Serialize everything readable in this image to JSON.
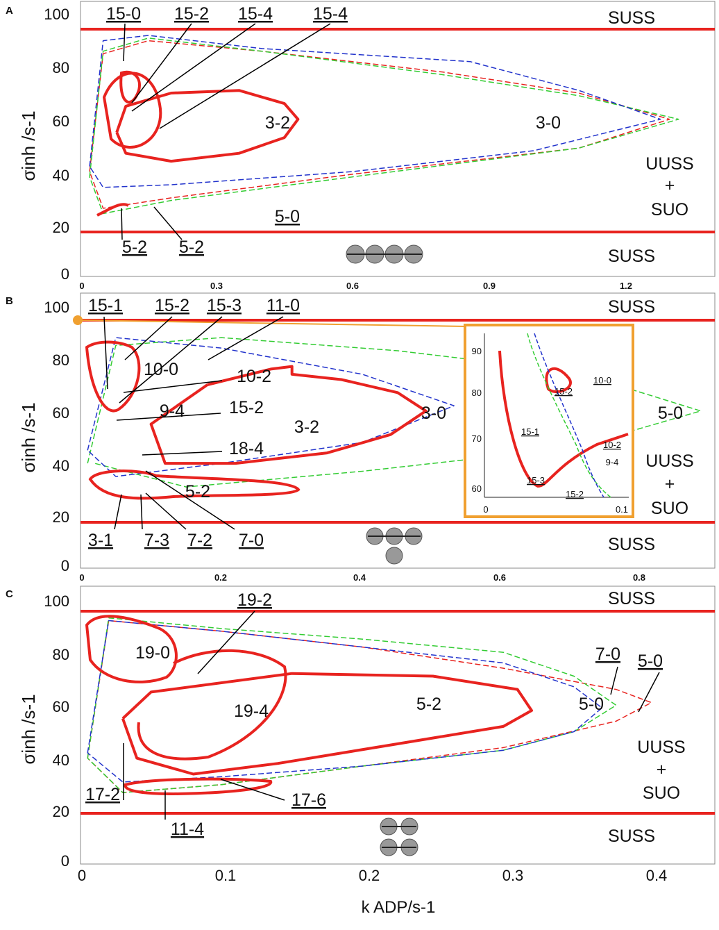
{
  "y_axis_label": "σinh /s-1",
  "x_axis_label": "k ADP/s-1",
  "colors": {
    "bound": "#e8231f",
    "curve_red": "#e8231f",
    "curve_green": "#33cc33",
    "curve_blue": "#2233cc",
    "inset_frame": "#f0a030"
  },
  "chart_data": [
    {
      "type": "line",
      "panel": "A",
      "xlim": [
        0,
        1.4
      ],
      "ylim": [
        0,
        105
      ],
      "xticks": [
        "0",
        "0.3",
        "0.6",
        "0.9",
        "1.2"
      ],
      "yticks": [
        "0",
        "20",
        "40",
        "60",
        "80",
        "100"
      ],
      "bounds_y": [
        18,
        95.5
      ],
      "regions": [
        "SUSS",
        "SUSS",
        "UUSS",
        "+",
        "SUO",
        "3-0",
        "3-2"
      ],
      "callouts": [
        "15-0",
        "15-2",
        "15-4",
        "15-4",
        "5-0",
        "5-2",
        "5-2"
      ],
      "series": [
        {
          "color": "red",
          "x": [
            0.02,
            0.05,
            0.15,
            0.4,
            0.8,
            1.1,
            1.3,
            1.1,
            0.6,
            0.2,
            0.05,
            0.02
          ],
          "y": [
            40,
            85,
            90,
            86,
            78,
            70,
            60,
            49,
            39,
            30,
            26,
            40
          ]
        },
        {
          "color": "green",
          "x": [
            0.02,
            0.05,
            0.15,
            0.4,
            0.8,
            1.1,
            1.32,
            1.1,
            0.6,
            0.2,
            0.05,
            0.02
          ],
          "y": [
            38,
            86,
            91,
            86,
            77,
            69,
            60,
            49,
            38,
            29,
            24,
            38
          ]
        },
        {
          "color": "blue",
          "x": [
            0.02,
            0.05,
            0.15,
            0.4,
            0.86,
            1.1,
            1.28,
            1.0,
            0.6,
            0.2,
            0.05,
            0.02
          ],
          "y": [
            42,
            90,
            92,
            87,
            82,
            71,
            60,
            48,
            40,
            35,
            34,
            42
          ]
        },
        {
          "color": "bound",
          "x": [
            0.08,
            0.1,
            0.2,
            0.35,
            0.45,
            0.48,
            0.45,
            0.35,
            0.2,
            0.1,
            0.08
          ],
          "y": [
            55,
            65,
            70,
            71,
            66,
            60,
            53,
            47,
            44,
            47,
            55
          ]
        }
      ]
    },
    {
      "type": "line",
      "panel": "B",
      "xlim": [
        0,
        0.9
      ],
      "ylim": [
        0,
        105
      ],
      "xticks": [
        "0",
        "0.2",
        "0.4",
        "0.6",
        "0.8"
      ],
      "yticks": [
        "0",
        "20",
        "40",
        "60",
        "80",
        "100"
      ],
      "bounds_y": [
        18,
        95.5
      ],
      "regions": [
        "SUSS",
        "SUSS",
        "UUSS",
        "+",
        "SUO",
        "3-0",
        "3-2",
        "9-4",
        "10-0",
        "5-0"
      ],
      "callouts": [
        "15-1",
        "15-2",
        "15-3",
        "11-0",
        "10-2",
        "15-2",
        "18-4",
        "5-2",
        "3-1",
        "7-3",
        "7-2",
        "7-0"
      ],
      "inset": {
        "xticks": [
          "0",
          "0.1"
        ],
        "yticks": [
          "60",
          "70",
          "80",
          "90"
        ],
        "labels": [
          "10-0",
          "15-2",
          "15-1",
          "10-2",
          "9-4",
          "15-3",
          "15-2"
        ]
      },
      "series": [
        {
          "color": "green",
          "x": [
            0.01,
            0.05,
            0.2,
            0.45,
            0.7,
            0.88,
            0.7,
            0.4,
            0.15,
            0.02
          ],
          "y": [
            40,
            85,
            88,
            83,
            75,
            60,
            46,
            37,
            31,
            40
          ]
        },
        {
          "color": "blue",
          "x": [
            0.01,
            0.05,
            0.2,
            0.4,
            0.53,
            0.4,
            0.2,
            0.05,
            0.01
          ],
          "y": [
            45,
            88,
            84,
            74,
            62,
            48,
            40,
            35,
            45
          ]
        },
        {
          "color": "bound",
          "x": [
            0.18,
            0.27,
            0.3,
            0.3,
            0.37,
            0.45,
            0.49,
            0.44,
            0.35,
            0.22,
            0.12,
            0.1,
            0.18
          ],
          "y": [
            70,
            76,
            77,
            74,
            72,
            67,
            60,
            51,
            44,
            40,
            40,
            55,
            70
          ]
        }
      ]
    },
    {
      "type": "line",
      "panel": "C",
      "xlim": [
        0,
        0.45
      ],
      "ylim": [
        0,
        105
      ],
      "xticks": [
        "0",
        "0.1",
        "0.2",
        "0.3",
        "0.4"
      ],
      "yticks": [
        "0",
        "20",
        "40",
        "60",
        "80",
        "100"
      ],
      "bounds_y": [
        18,
        95.5
      ],
      "regions": [
        "SUSS",
        "SUSS",
        "UUSS",
        "+",
        "SUO",
        "19-0",
        "19-4",
        "5-2",
        "5-0"
      ],
      "callouts": [
        "19-2",
        "7-0",
        "5-0",
        "17-2",
        "17-6",
        "11-4"
      ],
      "series": [
        {
          "color": "red",
          "x": [
            0.005,
            0.02,
            0.1,
            0.2,
            0.3,
            0.38,
            0.405,
            0.38,
            0.3,
            0.2,
            0.1,
            0.03,
            0.005
          ],
          "y": [
            40,
            92,
            88,
            82,
            74,
            66,
            61,
            54,
            44,
            37,
            30,
            27,
            40
          ]
        },
        {
          "color": "green",
          "x": [
            0.005,
            0.02,
            0.1,
            0.2,
            0.3,
            0.35,
            0.38,
            0.35,
            0.3,
            0.2,
            0.1,
            0.03,
            0.005
          ],
          "y": [
            40,
            93,
            89,
            85,
            80,
            71,
            60,
            50,
            43,
            37,
            30,
            27,
            40
          ]
        },
        {
          "color": "blue",
          "x": [
            0.005,
            0.02,
            0.1,
            0.2,
            0.3,
            0.35,
            0.37,
            0.35,
            0.3,
            0.2,
            0.1,
            0.03,
            0.005
          ],
          "y": [
            42,
            92,
            88,
            82,
            76,
            67,
            59,
            50,
            43,
            37,
            33,
            31,
            42
          ]
        },
        {
          "color": "bound",
          "x": [
            0.03,
            0.05,
            0.15,
            0.25,
            0.31,
            0.32,
            0.3,
            0.22,
            0.14,
            0.08,
            0.04,
            0.03
          ],
          "y": [
            55,
            65,
            72,
            71,
            66,
            58,
            52,
            45,
            38,
            34,
            40,
            55
          ]
        }
      ]
    }
  ]
}
